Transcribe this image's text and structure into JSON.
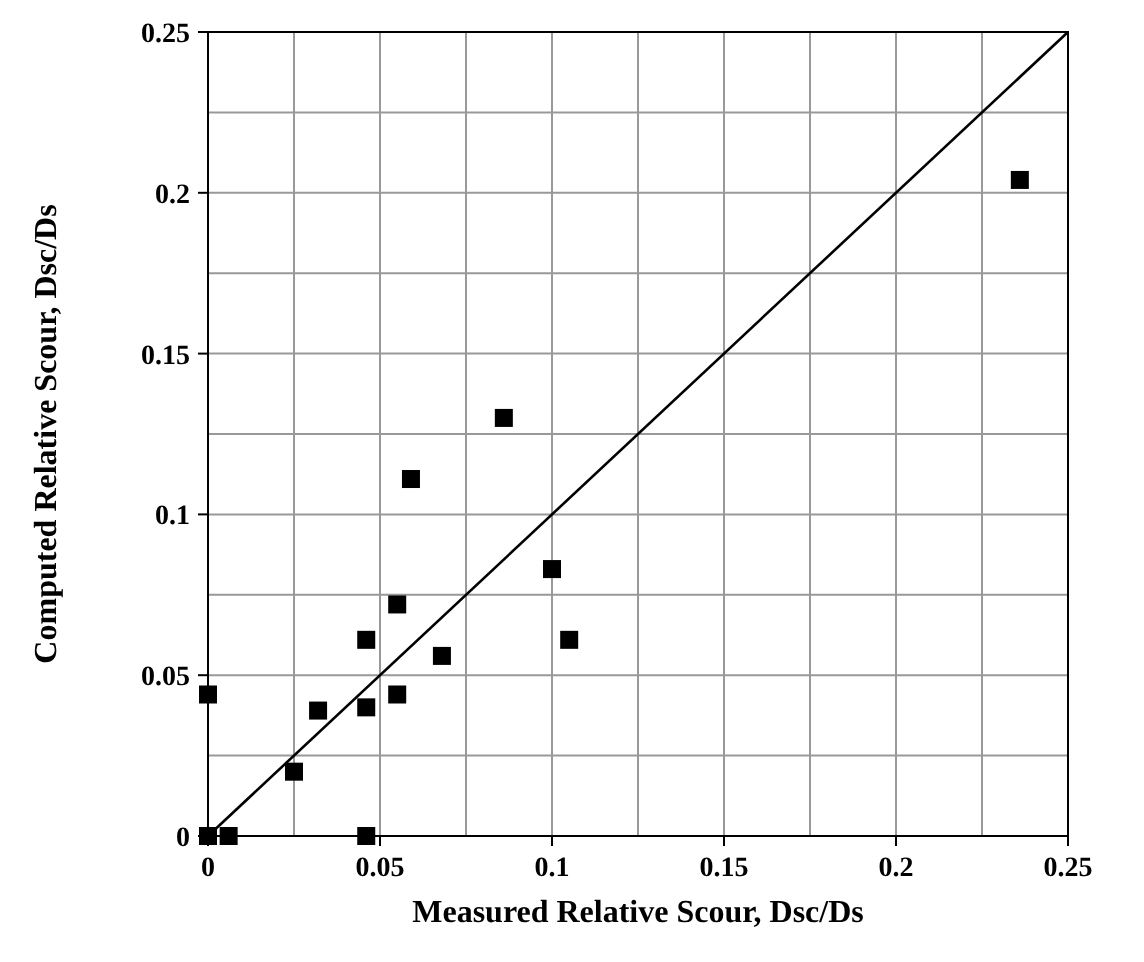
{
  "chart_data": {
    "type": "scatter",
    "xlabel": "Measured Relative Scour, Dsc/Ds",
    "ylabel": "Computed Relative Scour, Dsc/Ds",
    "xlim": [
      0,
      0.25
    ],
    "ylim": [
      0,
      0.25
    ],
    "xticks": [
      0,
      0.05,
      0.1,
      0.15,
      0.2,
      0.25
    ],
    "yticks": [
      0,
      0.05,
      0.1,
      0.15,
      0.2,
      0.25
    ],
    "grid": true,
    "marker": "square",
    "series": [
      {
        "color": "#000000",
        "x": [
          0,
          0.006,
          0,
          0.025,
          0.032,
          0.046,
          0.046,
          0.046,
          0.055,
          0.055,
          0.068,
          0.059,
          0.086,
          0.1,
          0.105,
          0.236
        ],
        "values": [
          0,
          0,
          0.044,
          0.02,
          0.039,
          0.04,
          0,
          0.061,
          0.044,
          0.072,
          0.056,
          0.111,
          0.13,
          0.083,
          0.061,
          0.204
        ]
      },
      {
        "type": "line",
        "color": "#000000",
        "marker": "none",
        "x": [
          0,
          0.25
        ],
        "values": [
          0,
          0.25
        ]
      }
    ]
  }
}
